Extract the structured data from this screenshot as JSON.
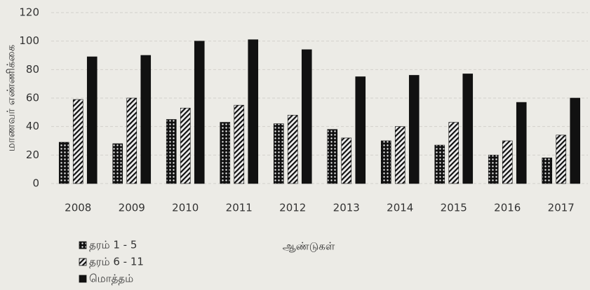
{
  "chart_data": {
    "type": "bar",
    "categories": [
      "2008",
      "2009",
      "2010",
      "2011",
      "2012",
      "2013",
      "2014",
      "2015",
      "2016",
      "2017"
    ],
    "series": [
      {
        "name": "தரம் 1 - 5",
        "color": "#111111",
        "pattern": "dots",
        "values": [
          29,
          28,
          45,
          43,
          42,
          38,
          30,
          27,
          20,
          18
        ]
      },
      {
        "name": "தரம் 6 - 11",
        "color": "#111111",
        "pattern": "hatch",
        "values": [
          59,
          60,
          53,
          55,
          48,
          32,
          40,
          43,
          30,
          34
        ]
      },
      {
        "name": "மொத்தம்",
        "color": "#111111",
        "pattern": "solid",
        "values": [
          89,
          90,
          100,
          101,
          94,
          75,
          76,
          77,
          57,
          60
        ]
      }
    ],
    "y_label": "மாணவர் எண்ணிக்கை",
    "x_label": "ஆண்டுகள்",
    "ylim": [
      0,
      120
    ],
    "yticks": [
      0,
      20,
      40,
      60,
      80,
      100,
      120
    ],
    "grid": true,
    "legend": "bottom-left"
  }
}
